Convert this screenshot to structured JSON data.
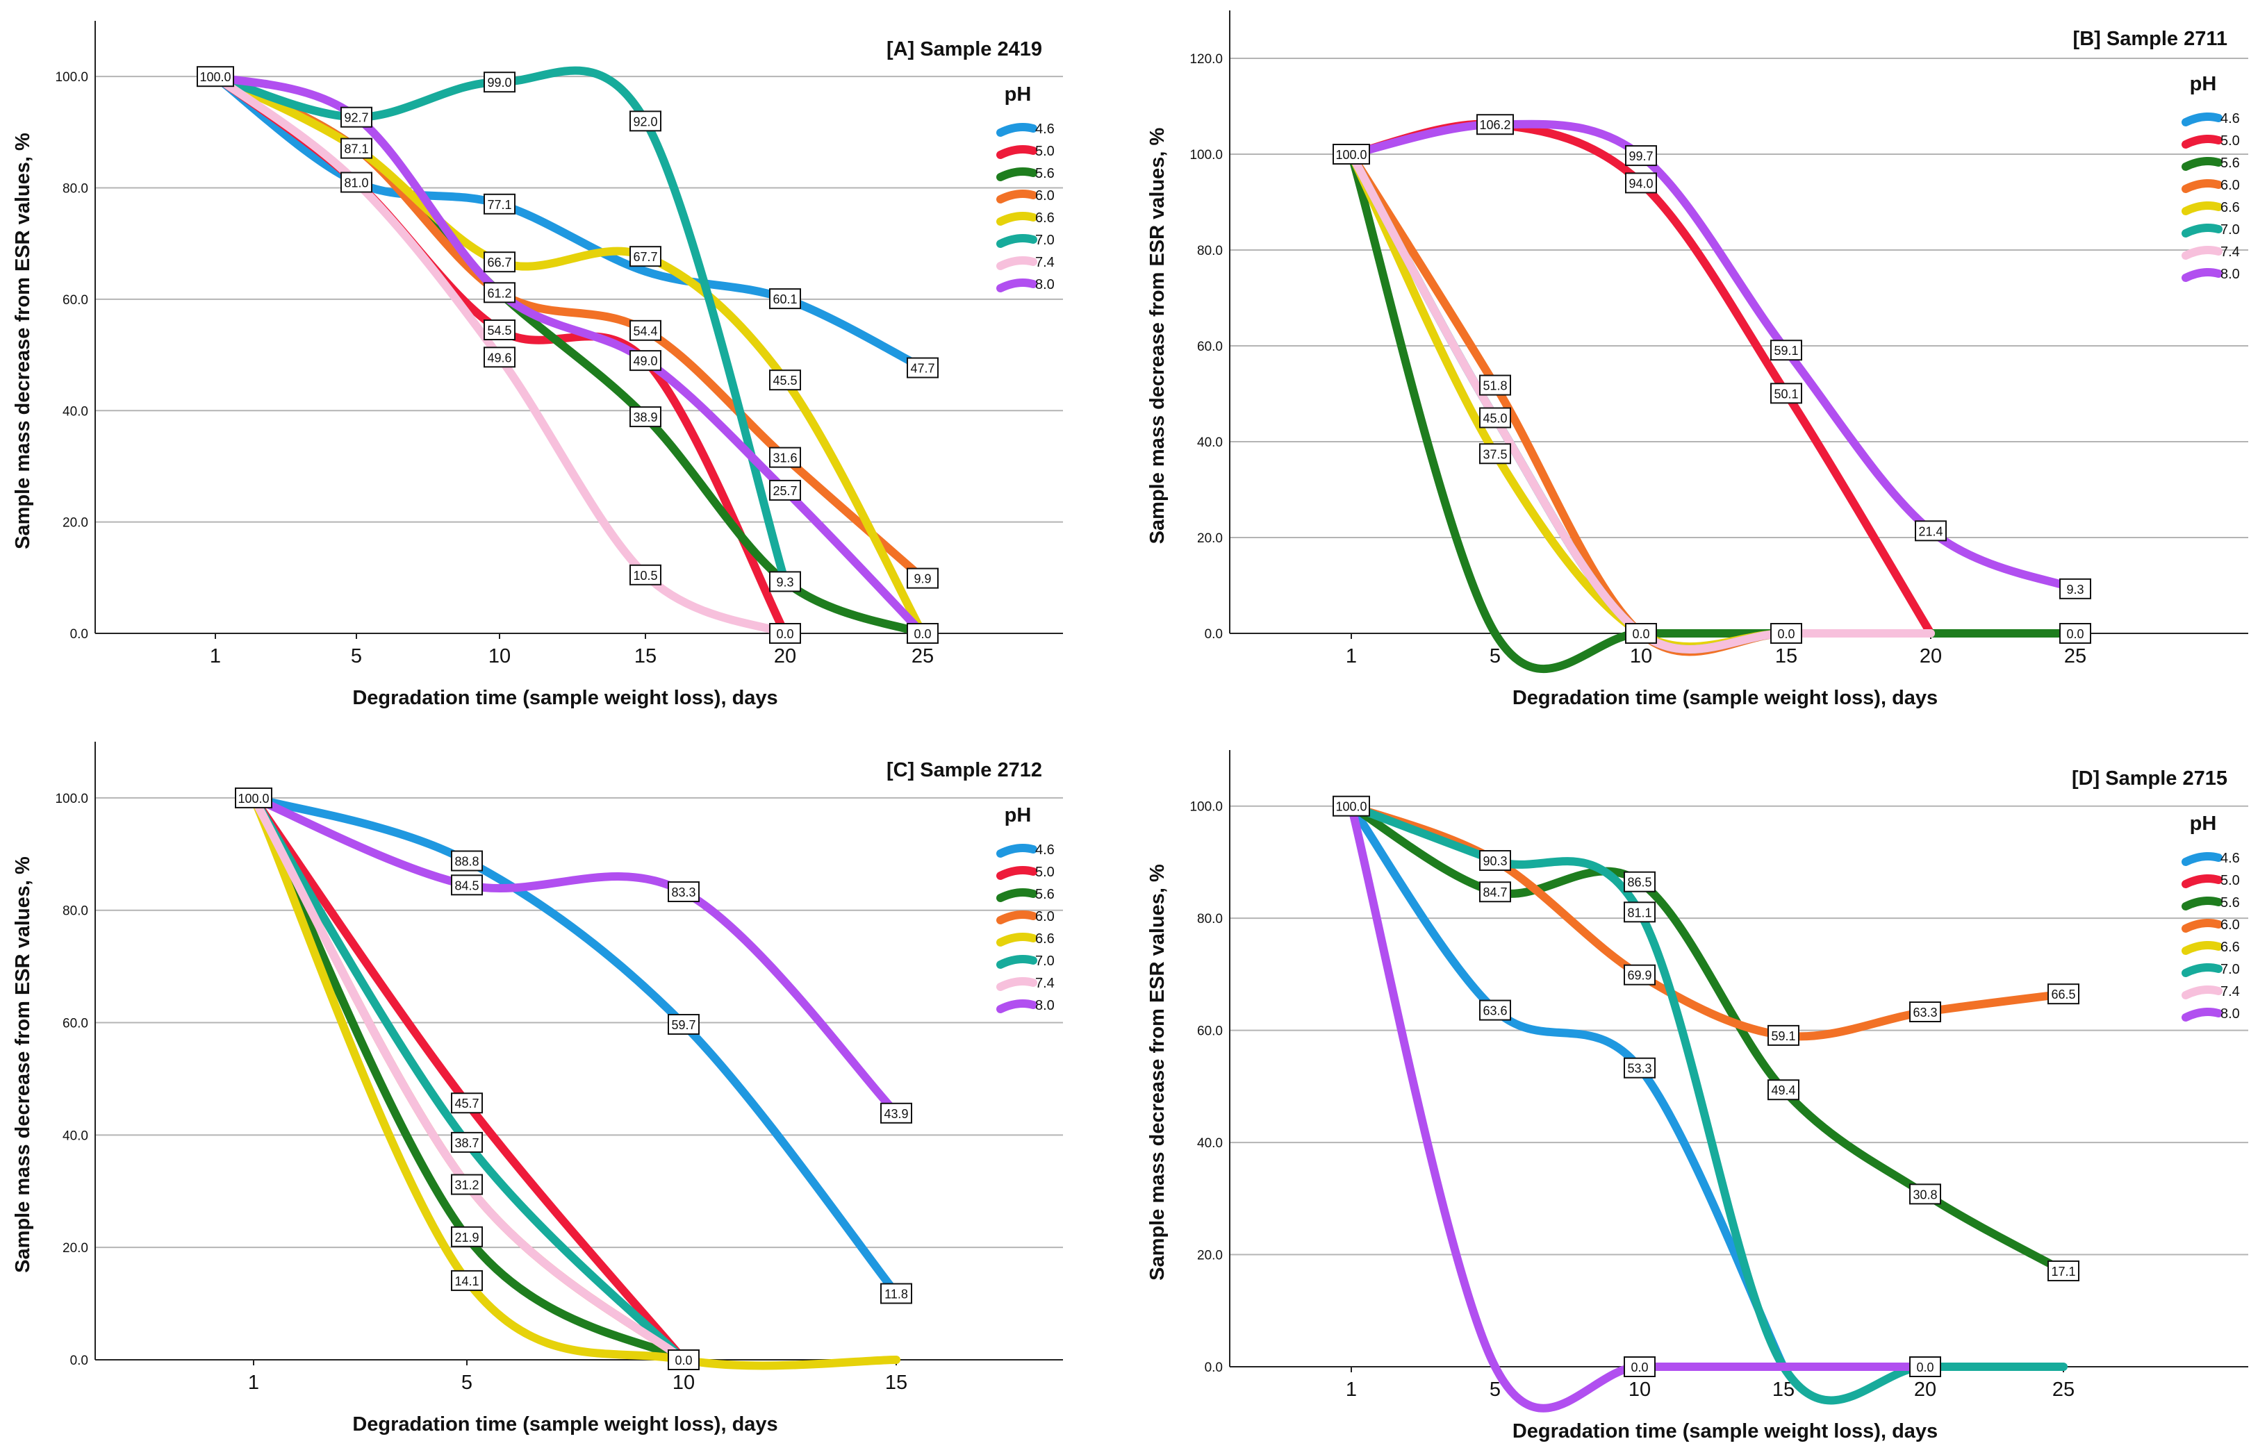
{
  "legend_title": "pH",
  "y_axis_label": "Sample mass decrease from ESR values, %",
  "x_axis_label": "Degradation time (sample weight loss), days",
  "series_colors": {
    "4.6": "#1f98e0",
    "5.0": "#ee1b3a",
    "5.6": "#1e7d1e",
    "6.0": "#f27126",
    "6.6": "#e6d20a",
    "7.0": "#17ab9b",
    "7.4": "#f7c0dc",
    "8.0": "#b14ff0"
  },
  "chart_data": [
    {
      "type": "line",
      "title": "[A] Sample 2419",
      "xlabel": "Degradation time (sample weight loss), days",
      "ylabel": "Sample mass decrease from ESR values, %",
      "categories": [
        "1",
        "5",
        "10",
        "15",
        "20",
        "25"
      ],
      "ylim": [
        0,
        110
      ],
      "yticks": [
        "0.0",
        "20.0",
        "40.0",
        "60.0",
        "80.0",
        "100.0"
      ],
      "legend_title": "pH",
      "series": [
        {
          "name": "4.6",
          "values": [
            100.0,
            81.0,
            77.1,
            65.0,
            60.1,
            47.7
          ]
        },
        {
          "name": "5.0",
          "values": [
            100.0,
            81.0,
            54.5,
            49.0,
            0.0,
            null
          ]
        },
        {
          "name": "5.6",
          "values": [
            100.0,
            87.1,
            61.2,
            38.9,
            9.3,
            0.0
          ]
        },
        {
          "name": "6.0",
          "values": [
            100.0,
            87.1,
            61.2,
            54.4,
            31.6,
            9.9
          ]
        },
        {
          "name": "6.6",
          "values": [
            100.0,
            87.1,
            66.7,
            67.7,
            45.5,
            0.0
          ]
        },
        {
          "name": "7.0",
          "values": [
            100.0,
            92.7,
            99.0,
            92.0,
            9.3,
            null
          ]
        },
        {
          "name": "7.4",
          "values": [
            100.0,
            81.0,
            49.6,
            10.5,
            0.0,
            null
          ]
        },
        {
          "name": "8.0",
          "values": [
            100.0,
            92.7,
            61.2,
            49.0,
            25.7,
            0.0
          ]
        }
      ],
      "data_labels": [
        {
          "x": "1",
          "y": 100.0,
          "text": "100.0"
        },
        {
          "x": "5",
          "y": 92.7,
          "text": "92.7"
        },
        {
          "x": "5",
          "y": 87.1,
          "text": "87.1"
        },
        {
          "x": "5",
          "y": 81.0,
          "text": "81.0"
        },
        {
          "x": "10",
          "y": 99.0,
          "text": "99.0"
        },
        {
          "x": "10",
          "y": 77.1,
          "text": "77.1"
        },
        {
          "x": "10",
          "y": 66.7,
          "text": "66.7"
        },
        {
          "x": "10",
          "y": 61.2,
          "text": "61.2"
        },
        {
          "x": "10",
          "y": 54.5,
          "text": "54.5"
        },
        {
          "x": "10",
          "y": 49.6,
          "text": "49.6"
        },
        {
          "x": "15",
          "y": 92.0,
          "text": "92.0"
        },
        {
          "x": "15",
          "y": 67.7,
          "text": "67.7"
        },
        {
          "x": "15",
          "y": 54.4,
          "text": "54.4"
        },
        {
          "x": "15",
          "y": 49.0,
          "text": "49.0"
        },
        {
          "x": "15",
          "y": 38.9,
          "text": "38.9"
        },
        {
          "x": "15",
          "y": 10.5,
          "text": "10.5"
        },
        {
          "x": "20",
          "y": 60.1,
          "text": "60.1"
        },
        {
          "x": "20",
          "y": 45.5,
          "text": "45.5"
        },
        {
          "x": "20",
          "y": 31.6,
          "text": "31.6"
        },
        {
          "x": "20",
          "y": 25.7,
          "text": "25.7"
        },
        {
          "x": "20",
          "y": 9.3,
          "text": "9.3"
        },
        {
          "x": "20",
          "y": 0.0,
          "text": "0.0"
        },
        {
          "x": "25",
          "y": 47.7,
          "text": "47.7"
        },
        {
          "x": "25",
          "y": 9.9,
          "text": "9.9"
        },
        {
          "x": "25",
          "y": 0.0,
          "text": "0.0"
        }
      ]
    },
    {
      "type": "line",
      "title": "[B] Sample 2711",
      "xlabel": "Degradation time (sample weight loss), days",
      "ylabel": "Sample mass decrease from ESR values, %",
      "categories": [
        "1",
        "5",
        "10",
        "15",
        "20",
        "25"
      ],
      "ylim": [
        0,
        130
      ],
      "yticks": [
        "0.0",
        "20.0",
        "40.0",
        "60.0",
        "80.0",
        "100.0",
        "120.0"
      ],
      "legend_title": "pH",
      "series": [
        {
          "name": "4.6",
          "values": [
            100.0,
            45.0,
            0.0,
            0.0,
            0.0,
            null
          ]
        },
        {
          "name": "5.0",
          "values": [
            100.0,
            106.2,
            94.0,
            50.1,
            0.0,
            null
          ]
        },
        {
          "name": "5.6",
          "values": [
            100.0,
            0.0,
            0.0,
            0.0,
            0.0,
            0.0
          ]
        },
        {
          "name": "6.0",
          "values": [
            100.0,
            51.8,
            0.0,
            0.0,
            0.0,
            null
          ]
        },
        {
          "name": "6.6",
          "values": [
            100.0,
            37.5,
            0.0,
            0.0,
            0.0,
            null
          ]
        },
        {
          "name": "7.0",
          "values": [
            100.0,
            45.0,
            0.0,
            0.0,
            0.0,
            null
          ]
        },
        {
          "name": "7.4",
          "values": [
            100.0,
            45.0,
            0.0,
            0.0,
            0.0,
            null
          ]
        },
        {
          "name": "8.0",
          "values": [
            100.0,
            106.2,
            99.7,
            59.1,
            21.4,
            9.3
          ]
        }
      ],
      "data_labels": [
        {
          "x": "1",
          "y": 100.0,
          "text": "100.0"
        },
        {
          "x": "5",
          "y": 106.2,
          "text": "106.2"
        },
        {
          "x": "5",
          "y": 51.8,
          "text": "51.8"
        },
        {
          "x": "5",
          "y": 45.0,
          "text": "45.0"
        },
        {
          "x": "5",
          "y": 37.5,
          "text": "37.5"
        },
        {
          "x": "10",
          "y": 99.7,
          "text": "99.7"
        },
        {
          "x": "10",
          "y": 94.0,
          "text": "94.0"
        },
        {
          "x": "10",
          "y": 0.0,
          "text": "0.0"
        },
        {
          "x": "15",
          "y": 59.1,
          "text": "59.1"
        },
        {
          "x": "15",
          "y": 50.1,
          "text": "50.1"
        },
        {
          "x": "15",
          "y": 0.0,
          "text": "0.0"
        },
        {
          "x": "20",
          "y": 21.4,
          "text": "21.4"
        },
        {
          "x": "25",
          "y": 9.3,
          "text": "9.3"
        },
        {
          "x": "25",
          "y": 0.0,
          "text": "0.0"
        }
      ]
    },
    {
      "type": "line",
      "title": "[C] Sample 2712",
      "xlabel": "Degradation time (sample weight loss), days",
      "ylabel": "Sample mass decrease from ESR values, %",
      "categories": [
        "1",
        "5",
        "10",
        "15"
      ],
      "ylim": [
        0,
        110
      ],
      "yticks": [
        "0.0",
        "20.0",
        "40.0",
        "60.0",
        "80.0",
        "100.0"
      ],
      "legend_title": "pH",
      "series": [
        {
          "name": "4.6",
          "values": [
            100.0,
            88.8,
            59.7,
            11.8
          ]
        },
        {
          "name": "5.0",
          "values": [
            100.0,
            45.7,
            0.0,
            null
          ]
        },
        {
          "name": "5.6",
          "values": [
            100.0,
            21.9,
            0.0,
            null
          ]
        },
        {
          "name": "6.0",
          "values": [
            100.0,
            31.2,
            0.0,
            null
          ]
        },
        {
          "name": "6.6",
          "values": [
            100.0,
            14.1,
            0.0,
            0.0
          ]
        },
        {
          "name": "7.0",
          "values": [
            100.0,
            38.7,
            0.0,
            null
          ]
        },
        {
          "name": "7.4",
          "values": [
            100.0,
            31.2,
            0.0,
            null
          ]
        },
        {
          "name": "8.0",
          "values": [
            100.0,
            84.5,
            83.3,
            43.9
          ]
        }
      ],
      "data_labels": [
        {
          "x": "1",
          "y": 100.0,
          "text": "100.0"
        },
        {
          "x": "5",
          "y": 88.8,
          "text": "88.8"
        },
        {
          "x": "5",
          "y": 84.5,
          "text": "84.5"
        },
        {
          "x": "5",
          "y": 45.7,
          "text": "45.7"
        },
        {
          "x": "5",
          "y": 38.7,
          "text": "38.7"
        },
        {
          "x": "5",
          "y": 31.2,
          "text": "31.2"
        },
        {
          "x": "5",
          "y": 21.9,
          "text": "21.9"
        },
        {
          "x": "5",
          "y": 14.1,
          "text": "14.1"
        },
        {
          "x": "10",
          "y": 83.3,
          "text": "83.3"
        },
        {
          "x": "10",
          "y": 59.7,
          "text": "59.7"
        },
        {
          "x": "10",
          "y": 0.0,
          "text": "0.0"
        },
        {
          "x": "15",
          "y": 43.9,
          "text": "43.9"
        },
        {
          "x": "15",
          "y": 11.8,
          "text": "11.8"
        }
      ]
    },
    {
      "type": "line",
      "title": "[D]  Sample 2715",
      "xlabel": "Degradation time (sample weight loss), days",
      "ylabel": "Sample mass decrease from ESR values, %",
      "categories": [
        "1",
        "5",
        "10",
        "15",
        "20",
        "25"
      ],
      "ylim": [
        0,
        110
      ],
      "yticks": [
        "0.0",
        "20.0",
        "40.0",
        "60.0",
        "80.0",
        "100.0"
      ],
      "legend_title": "pH",
      "series": [
        {
          "name": "4.6",
          "values": [
            100.0,
            63.6,
            53.3,
            0.0,
            null,
            null
          ]
        },
        {
          "name": "5.0",
          "values": [
            null,
            null,
            null,
            null,
            null,
            null
          ]
        },
        {
          "name": "5.6",
          "values": [
            100.0,
            84.7,
            86.5,
            49.4,
            30.8,
            17.1
          ]
        },
        {
          "name": "6.0",
          "values": [
            100.0,
            90.3,
            69.9,
            59.1,
            63.3,
            66.5
          ]
        },
        {
          "name": "6.6",
          "values": [
            null,
            null,
            null,
            null,
            null,
            null
          ]
        },
        {
          "name": "7.0",
          "values": [
            100.0,
            90.3,
            81.1,
            0.0,
            0.0,
            0.0
          ]
        },
        {
          "name": "7.4",
          "values": [
            null,
            null,
            null,
            null,
            null,
            null
          ]
        },
        {
          "name": "8.0",
          "values": [
            100.0,
            0.0,
            0.0,
            0.0,
            0.0,
            null
          ]
        }
      ],
      "data_labels": [
        {
          "x": "1",
          "y": 100.0,
          "text": "100.0"
        },
        {
          "x": "5",
          "y": 90.3,
          "text": "90.3"
        },
        {
          "x": "5",
          "y": 84.7,
          "text": "84.7"
        },
        {
          "x": "5",
          "y": 63.6,
          "text": "63.6"
        },
        {
          "x": "10",
          "y": 86.5,
          "text": "86.5"
        },
        {
          "x": "10",
          "y": 81.1,
          "text": "81.1"
        },
        {
          "x": "10",
          "y": 69.9,
          "text": "69.9"
        },
        {
          "x": "10",
          "y": 53.3,
          "text": "53.3"
        },
        {
          "x": "10",
          "y": 0.0,
          "text": "0.0"
        },
        {
          "x": "15",
          "y": 59.1,
          "text": "59.1"
        },
        {
          "x": "15",
          "y": 49.4,
          "text": "49.4"
        },
        {
          "x": "20",
          "y": 63.3,
          "text": "63.3"
        },
        {
          "x": "20",
          "y": 30.8,
          "text": "30.8"
        },
        {
          "x": "20",
          "y": 0.0,
          "text": "0.0"
        },
        {
          "x": "25",
          "y": 66.5,
          "text": "66.5"
        },
        {
          "x": "25",
          "y": 17.1,
          "text": "17.1"
        }
      ]
    }
  ]
}
